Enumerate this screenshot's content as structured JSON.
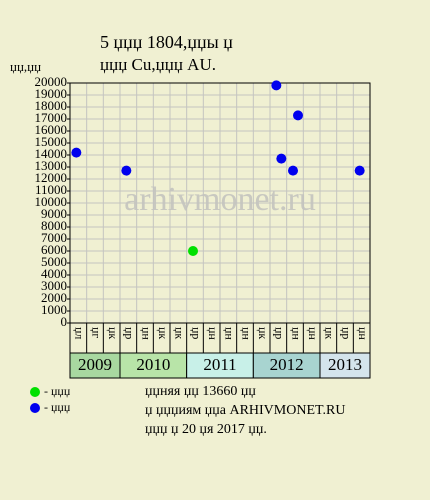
{
  "chart_data": {
    "type": "scatter",
    "title": "5 џџџ 1804,џџы џ",
    "subtitle": "џџџ Cu,џџџ AU.",
    "y_label": "џџ,џџ",
    "watermark": "arhivmonet.ru",
    "categories": [
      "џл",
      "џг",
      "џк",
      "џр",
      "џн",
      "џк",
      "џк",
      "џр",
      "џн",
      "џн",
      "џн",
      "џк",
      "џр",
      "џн",
      "џн",
      "џк",
      "џр",
      "џн"
    ],
    "years": [
      {
        "label": "2009",
        "span": 3,
        "color": "#a8d8a0"
      },
      {
        "label": "2010",
        "span": 4,
        "color": "#b8e4a8"
      },
      {
        "label": "2011",
        "span": 4,
        "color": "#c8f0e8"
      },
      {
        "label": "2012",
        "span": 4,
        "color": "#a8d4d0"
      },
      {
        "label": "2013",
        "span": 3,
        "color": "#d4e4ec"
      }
    ],
    "series": [
      {
        "name": "- џџџ",
        "color": "#00e000",
        "points": [
          {
            "x": 7,
            "y": 6000
          }
        ]
      },
      {
        "name": "- џџџ",
        "color": "#0000ee",
        "points": [
          {
            "x": 0,
            "y": 14200
          },
          {
            "x": 3,
            "y": 12700
          },
          {
            "x": 12,
            "y": 19800
          },
          {
            "x": 12,
            "y": 13700
          },
          {
            "x": 13,
            "y": 12700
          },
          {
            "x": 13,
            "y": 17300
          },
          {
            "x": 17,
            "y": 12700
          }
        ]
      }
    ],
    "ylim": [
      0,
      20000
    ],
    "yticks": [
      0,
      1000,
      2000,
      3000,
      4000,
      5000,
      6000,
      7000,
      8000,
      9000,
      10000,
      11000,
      12000,
      13000,
      14000,
      15000,
      16000,
      17000,
      18000,
      19000,
      20000
    ],
    "grid": true,
    "notes": [
      "џџняя џџ 13660 џџ",
      "џ џџџиям џџа ARHIVMONET.RU",
      "џџџ џ 20 џя 2017 џџ."
    ]
  }
}
